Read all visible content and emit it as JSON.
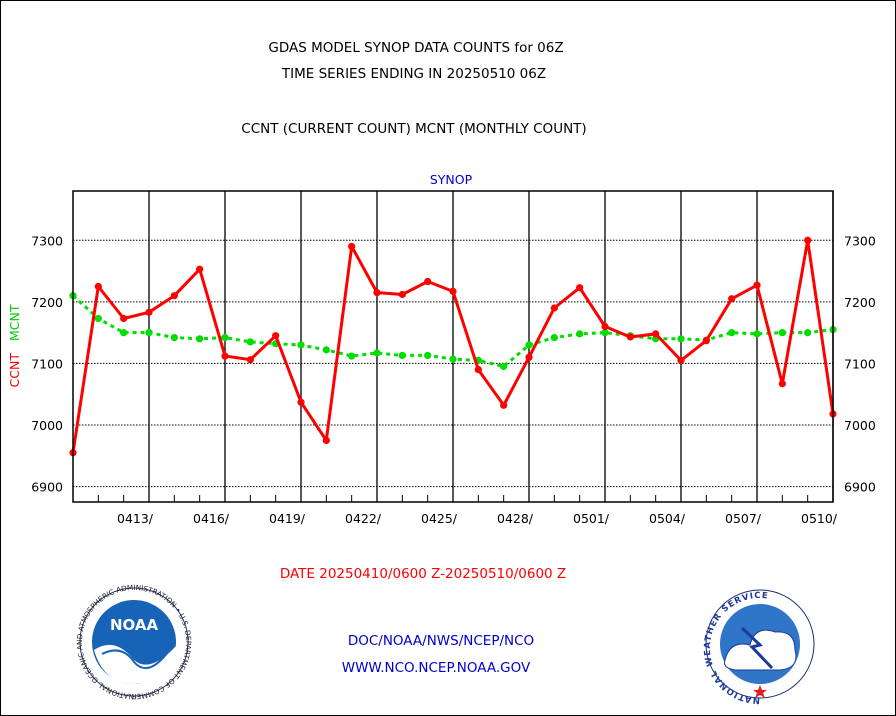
{
  "header": {
    "title_line1": "GDAS MODEL SYNOP DATA COUNTS for 06Z",
    "title_line2": "TIME SERIES ENDING IN 20250510 06Z",
    "subtitle": "CCNT (CURRENT COUNT) MCNT (MONTHLY COUNT)"
  },
  "footer": {
    "date_range": "DATE 20250410/0600 Z-20250510/0600 Z",
    "agency": "DOC/NOAA/NWS/NCEP/NCO",
    "website": "WWW.NCO.NCEP.NOAA.GOV",
    "noaa_logo_text": "NOAA",
    "nws_logo_text": "NATIONAL WEATHER SERVICE",
    "noaa_seal_text": "NATIONAL OCEANIC AND ATMOSPHERIC ADMINISTRATION • U.S. DEPARTMENT OF COMMERCE •"
  },
  "colors": {
    "ccnt": "#ff0000",
    "mcnt": "#00dd00",
    "panel_title": "#0000cc",
    "footer_link": "#0000cc",
    "date_text": "#ff0000"
  },
  "chart_data": {
    "type": "line",
    "title": "SYNOP",
    "ylabel_ccnt": "CCNT",
    "ylabel_mcnt": "MCNT",
    "ylim": [
      6875,
      7380
    ],
    "yticks": [
      6900,
      7000,
      7100,
      7200,
      7300
    ],
    "ytick_labels": [
      "6900",
      "7000",
      "7100",
      "7200",
      "7300"
    ],
    "x_start_day": 0,
    "x_end_day": 30,
    "major_tick_days": [
      3,
      6,
      9,
      12,
      15,
      18,
      21,
      24,
      27,
      30
    ],
    "major_tick_labels": [
      "0413/",
      "0416/",
      "0419/",
      "0422/",
      "0425/",
      "0428/",
      "0501/",
      "0504/",
      "0507/",
      "0510/"
    ],
    "grid": true,
    "series": [
      {
        "name": "CCNT",
        "x": [
          0,
          1,
          2,
          3,
          4,
          5,
          6,
          7,
          8,
          9,
          10,
          11,
          12,
          13,
          14,
          15,
          16,
          17,
          18,
          19,
          20,
          21,
          22,
          23,
          24,
          25,
          26,
          27,
          28,
          29,
          30
        ],
        "values": [
          6955,
          7225,
          7173,
          7183,
          7210,
          7253,
          7112,
          7106,
          7145,
          7037,
          6975,
          7290,
          7215,
          7212,
          7233,
          7217,
          7090,
          7032,
          7110,
          7190,
          7223,
          7160,
          7143,
          7148,
          7105,
          7137,
          7205,
          7227,
          7067,
          7300,
          7018
        ]
      },
      {
        "name": "MCNT",
        "x": [
          0,
          1,
          2,
          3,
          4,
          5,
          6,
          7,
          8,
          9,
          10,
          11,
          12,
          13,
          14,
          15,
          16,
          17,
          18,
          19,
          20,
          21,
          22,
          23,
          24,
          25,
          26,
          27,
          28,
          29,
          30
        ],
        "values": [
          7210,
          7173,
          7150,
          7150,
          7142,
          7140,
          7142,
          7135,
          7132,
          7130,
          7122,
          7112,
          7117,
          7113,
          7113,
          7107,
          7105,
          7095,
          7130,
          7142,
          7148,
          7150,
          7145,
          7140,
          7140,
          7138,
          7150,
          7148,
          7150,
          7150,
          7155
        ]
      }
    ]
  }
}
